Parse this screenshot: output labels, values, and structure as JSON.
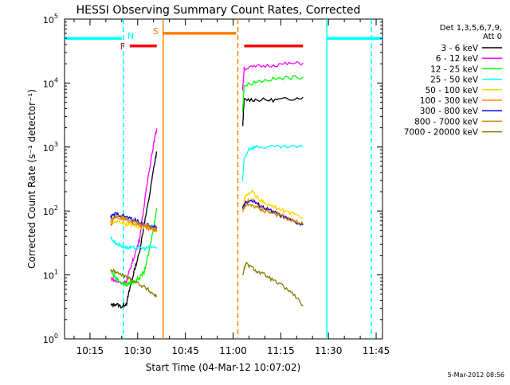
{
  "chart_data": {
    "type": "line",
    "title": "HESSI Observing Summary Count Rates, Corrected",
    "xlabel": "Start Time (04-Mar-12 10:07:02)",
    "ylabel": "Corrected Count Rate (s⁻¹ detector⁻¹)",
    "footer": "5-Mar-2012 08:56",
    "x_axis": {
      "unit": "minutes after 10:07:02",
      "range": [
        0,
        100
      ],
      "ticks": [
        {
          "value": 8,
          "label": "10:15"
        },
        {
          "value": 23,
          "label": "10:30"
        },
        {
          "value": 38,
          "label": "10:45"
        },
        {
          "value": 53,
          "label": "11:00"
        },
        {
          "value": 68,
          "label": "11:15"
        },
        {
          "value": 83,
          "label": "11:30"
        },
        {
          "value": 98,
          "label": "11:45"
        }
      ]
    },
    "y_axis": {
      "scale": "log",
      "range": [
        1,
        100000
      ],
      "ticks": [
        {
          "value": 1,
          "base": "10",
          "exp": "0"
        },
        {
          "value": 10,
          "base": "10",
          "exp": "1"
        },
        {
          "value": 100,
          "base": "10",
          "exp": "2"
        },
        {
          "value": 1000,
          "base": "10",
          "exp": "3"
        },
        {
          "value": 10000,
          "base": "10",
          "exp": "4"
        },
        {
          "value": 100000,
          "base": "10",
          "exp": "5"
        }
      ]
    },
    "legend": {
      "position": "right",
      "header": [
        "Det 1,3,5,6,7,9,",
        "Att 0"
      ]
    },
    "segments": [
      [
        14.5,
        29.0
      ],
      [
        56.0,
        75.0
      ]
    ],
    "series": [
      {
        "name": "3 - 6 keV",
        "color": "#000000",
        "points": [
          [
            14.5,
            3.3
          ],
          [
            16,
            3.5
          ],
          [
            18,
            3.2
          ],
          [
            19.5,
            3.6
          ],
          [
            20.5,
            6
          ],
          [
            22,
            12
          ],
          [
            23.5,
            22
          ],
          [
            25,
            60
          ],
          [
            26.5,
            150
          ],
          [
            28,
            450
          ],
          [
            29,
            850
          ],
          [
            56,
            2000
          ],
          [
            56.5,
            5500
          ],
          [
            60,
            5500
          ],
          [
            65,
            5400
          ],
          [
            70,
            5600
          ],
          [
            75,
            6000
          ]
        ]
      },
      {
        "name": "6 - 12 keV",
        "color": "#ff00ff",
        "points": [
          [
            14.5,
            9
          ],
          [
            16,
            8
          ],
          [
            18,
            7.5
          ],
          [
            19.5,
            8
          ],
          [
            20.5,
            12
          ],
          [
            22,
            20
          ],
          [
            23.5,
            35
          ],
          [
            25,
            120
          ],
          [
            26.5,
            400
          ],
          [
            28,
            1100
          ],
          [
            29,
            1950
          ],
          [
            56,
            8000
          ],
          [
            56.5,
            17000
          ],
          [
            60,
            18000
          ],
          [
            65,
            19000
          ],
          [
            70,
            20000
          ],
          [
            75,
            20500
          ]
        ]
      },
      {
        "name": "12 - 25 keV",
        "color": "#00ff00",
        "points": [
          [
            14.5,
            12
          ],
          [
            16,
            9
          ],
          [
            18,
            7.5
          ],
          [
            19.5,
            7
          ],
          [
            20.5,
            7.5
          ],
          [
            22,
            8
          ],
          [
            23.5,
            9
          ],
          [
            25,
            11
          ],
          [
            26.5,
            22
          ],
          [
            28,
            55
          ],
          [
            29,
            110
          ],
          [
            56,
            3500
          ],
          [
            56.5,
            9000
          ],
          [
            60,
            10500
          ],
          [
            65,
            11500
          ],
          [
            70,
            12000
          ],
          [
            75,
            12500
          ]
        ]
      },
      {
        "name": "25 - 50 keV",
        "color": "#00ffff",
        "points": [
          [
            14.5,
            38
          ],
          [
            16,
            32
          ],
          [
            18,
            28
          ],
          [
            19.5,
            27
          ],
          [
            21,
            26
          ],
          [
            23,
            27
          ],
          [
            25,
            26
          ],
          [
            27,
            27
          ],
          [
            29,
            27
          ],
          [
            56,
            300
          ],
          [
            56.5,
            650
          ],
          [
            58,
            950
          ],
          [
            60,
            1000
          ],
          [
            65,
            1000
          ],
          [
            70,
            1000
          ],
          [
            75,
            1000
          ]
        ]
      },
      {
        "name": "50 - 100 keV",
        "color": "#ffd700",
        "points": [
          [
            14.5,
            62
          ],
          [
            16,
            70
          ],
          [
            18,
            66
          ],
          [
            20,
            62
          ],
          [
            22,
            60
          ],
          [
            24,
            56
          ],
          [
            26,
            54
          ],
          [
            28,
            52
          ],
          [
            29,
            50
          ],
          [
            56,
            120
          ],
          [
            57,
            170
          ],
          [
            59,
            200
          ],
          [
            61,
            155
          ],
          [
            63,
            130
          ],
          [
            66,
            115
          ],
          [
            69,
            100
          ],
          [
            72,
            88
          ],
          [
            75,
            78
          ]
        ]
      },
      {
        "name": "100 - 300 keV",
        "color": "#ff8c00",
        "points": [
          [
            14.5,
            70
          ],
          [
            16,
            80
          ],
          [
            18,
            76
          ],
          [
            20,
            70
          ],
          [
            22,
            64
          ],
          [
            24,
            58
          ],
          [
            26,
            54
          ],
          [
            28,
            50
          ],
          [
            29,
            48
          ],
          [
            56,
            100
          ],
          [
            57,
            140
          ],
          [
            59,
            150
          ],
          [
            61,
            128
          ],
          [
            63,
            110
          ],
          [
            66,
            96
          ],
          [
            69,
            82
          ],
          [
            72,
            70
          ],
          [
            75,
            62
          ]
        ]
      },
      {
        "name": "300 - 800 keV",
        "color": "#0000ff",
        "points": [
          [
            14.5,
            80
          ],
          [
            16,
            90
          ],
          [
            18,
            85
          ],
          [
            20,
            78
          ],
          [
            22,
            72
          ],
          [
            24,
            66
          ],
          [
            26,
            60
          ],
          [
            28,
            56
          ],
          [
            29,
            54
          ],
          [
            56,
            110
          ],
          [
            57,
            140
          ],
          [
            59,
            145
          ],
          [
            61,
            125
          ],
          [
            63,
            110
          ],
          [
            66,
            95
          ],
          [
            69,
            80
          ],
          [
            72,
            68
          ],
          [
            75,
            60
          ]
        ]
      },
      {
        "name": "800 - 7000 keV",
        "color": "#cd8500",
        "points": [
          [
            14.5,
            60
          ],
          [
            16,
            84
          ],
          [
            18,
            80
          ],
          [
            20,
            74
          ],
          [
            22,
            68
          ],
          [
            24,
            62
          ],
          [
            26,
            58
          ],
          [
            28,
            54
          ],
          [
            29,
            52
          ],
          [
            56,
            105
          ],
          [
            57,
            120
          ],
          [
            59,
            124
          ],
          [
            61,
            110
          ],
          [
            63,
            100
          ],
          [
            66,
            90
          ],
          [
            69,
            80
          ],
          [
            72,
            70
          ],
          [
            75,
            62
          ]
        ]
      },
      {
        "name": "7000 - 20000 keV",
        "color": "#808000",
        "points": [
          [
            14.5,
            12
          ],
          [
            16,
            11
          ],
          [
            18,
            10
          ],
          [
            20,
            9
          ],
          [
            22,
            8
          ],
          [
            24,
            7
          ],
          [
            26,
            6
          ],
          [
            28,
            5
          ],
          [
            29,
            4.6
          ],
          [
            56,
            10
          ],
          [
            57,
            15
          ],
          [
            59,
            13
          ],
          [
            61,
            11
          ],
          [
            63,
            10
          ],
          [
            66,
            8
          ],
          [
            69,
            6.5
          ],
          [
            72,
            5
          ],
          [
            75,
            3.3
          ]
        ]
      }
    ],
    "flag_bars": [
      {
        "label": "",
        "color": "#00ffff",
        "y": 50000,
        "x": [
          0,
          18
        ]
      },
      {
        "label": "",
        "color": "#00ffff",
        "y": 50000,
        "x": [
          82.5,
          100
        ]
      },
      {
        "label": "S",
        "color": "#ff7f00",
        "y": 60000,
        "x": [
          31,
          54
        ]
      },
      {
        "label": "F",
        "color": "#ff0000",
        "y": 38000,
        "x": [
          20.5,
          29
        ]
      },
      {
        "label": "",
        "color": "#ff0000",
        "y": 38000,
        "x": [
          56.5,
          75
        ]
      },
      {
        "label": "N",
        "color": "#00ffff",
        "y": null,
        "x": null
      }
    ],
    "vertical_markers": [
      {
        "x": 18.5,
        "color": "#00ffff",
        "style": "dashed"
      },
      {
        "x": 31,
        "color": "#ff7f00",
        "style": "solid"
      },
      {
        "x": 54.5,
        "color": "#ff7f00",
        "style": "dashed"
      },
      {
        "x": 82.5,
        "color": "#00ffff",
        "style": "solid"
      },
      {
        "x": 96.5,
        "color": "#00ffff",
        "style": "dashed"
      }
    ]
  }
}
